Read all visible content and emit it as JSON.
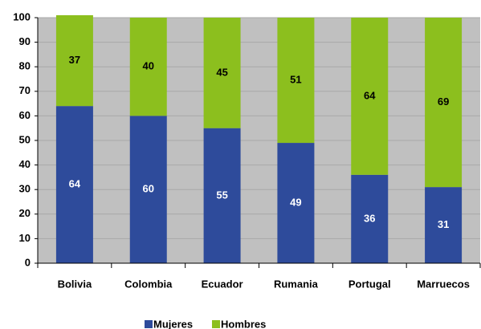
{
  "chart_data": {
    "type": "stacked_bar",
    "categories": [
      "Bolivia",
      "Colombia",
      "Ecuador",
      "Rumania",
      "Portugal",
      "Marruecos"
    ],
    "series": [
      {
        "name": "Mujeres",
        "color": "#2e4b9b",
        "values": [
          64,
          60,
          55,
          49,
          36,
          31
        ]
      },
      {
        "name": "Hombres",
        "color": "#8cbf1e",
        "values": [
          37,
          40,
          45,
          51,
          64,
          69
        ]
      }
    ],
    "ylim": [
      0,
      100
    ],
    "yticks": [
      0,
      10,
      20,
      30,
      40,
      50,
      60,
      70,
      80,
      90,
      100
    ],
    "grid": true,
    "legend": "bottom"
  }
}
